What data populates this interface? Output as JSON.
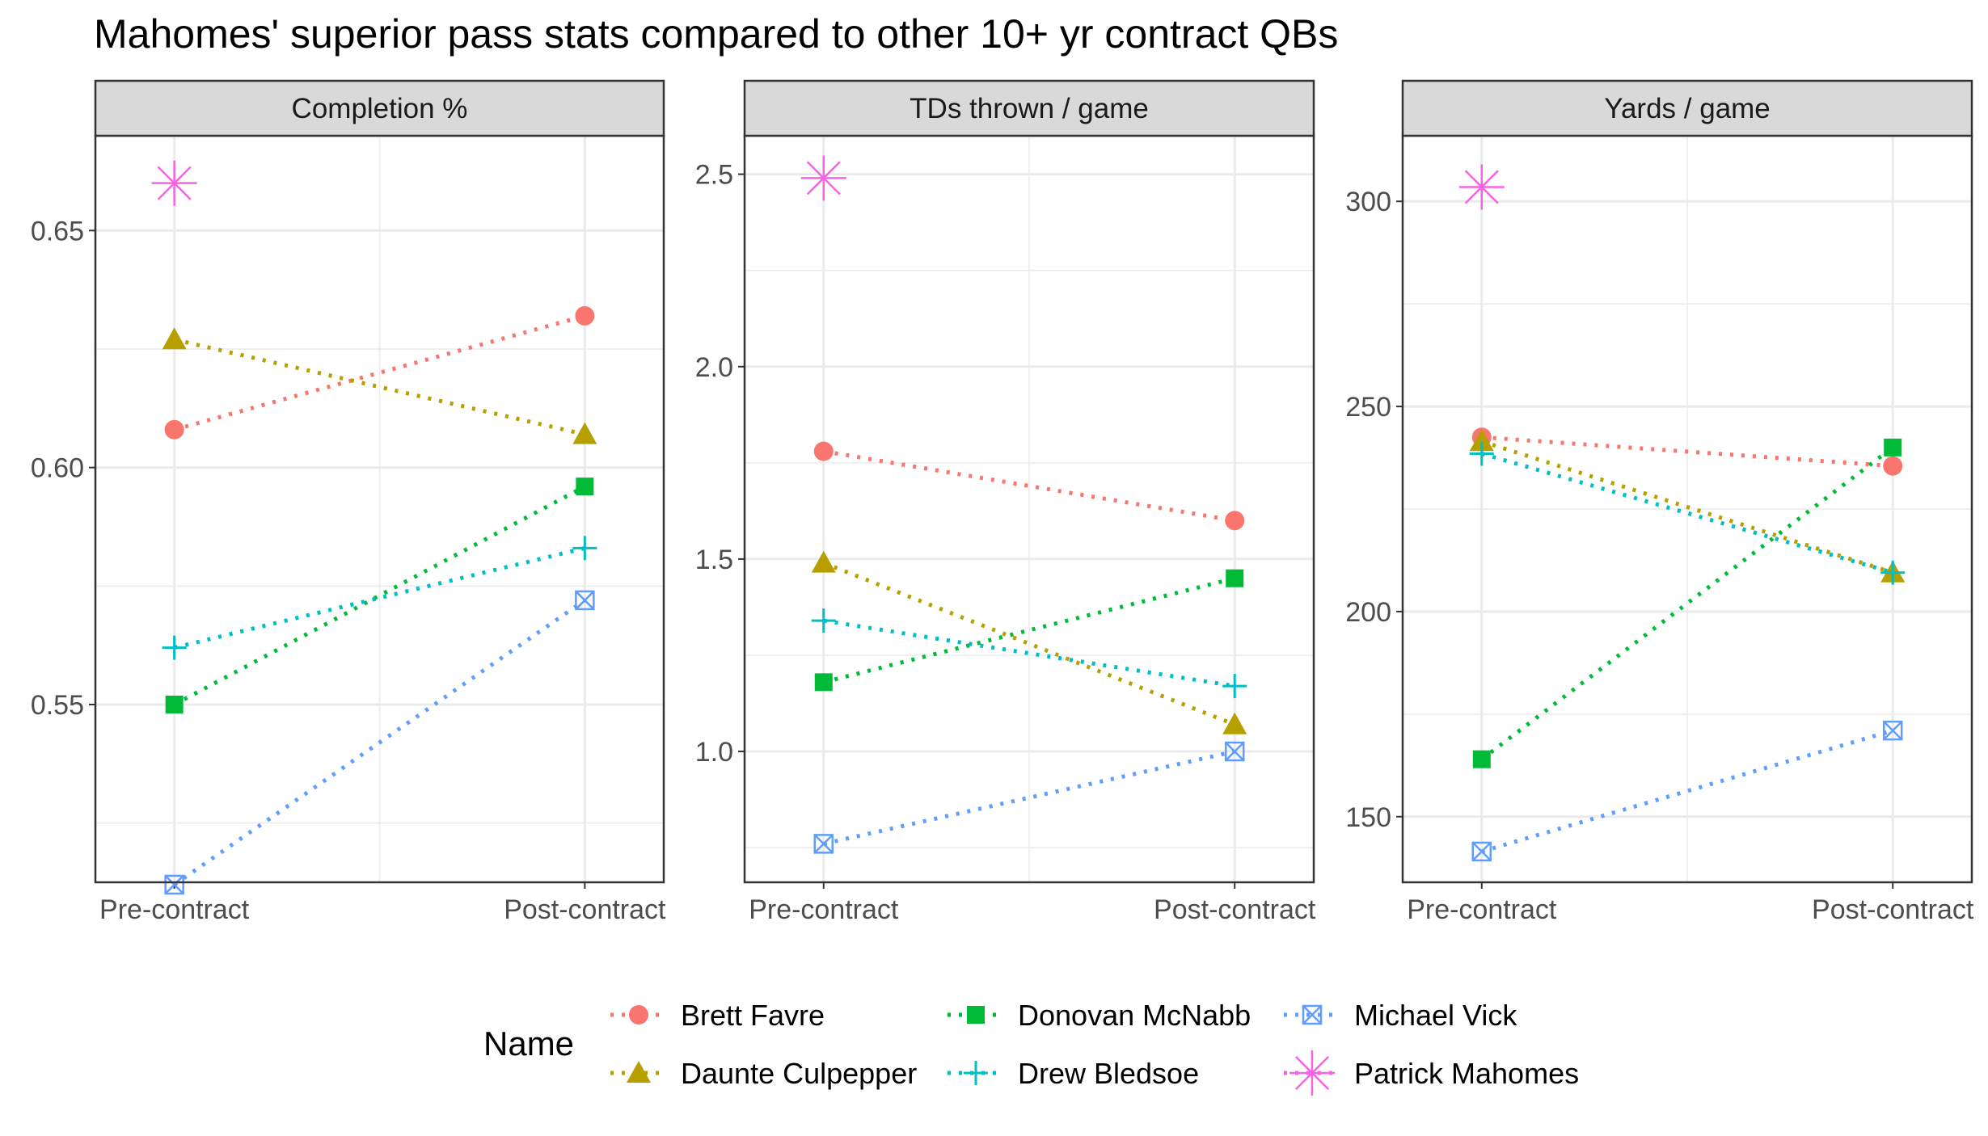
{
  "chart_data": {
    "type": "line",
    "title": "Mahomes' superior pass stats compared to other 10+ yr contract QBs",
    "x_categories": [
      "Pre-contract",
      "Post-contract"
    ],
    "grid": true,
    "legend": {
      "title": "Name",
      "placement": "bottom"
    },
    "series": [
      {
        "name": "Brett Favre",
        "color": "#F8766D",
        "marker": "circle"
      },
      {
        "name": "Daunte Culpepper",
        "color": "#B79F00",
        "marker": "triangle"
      },
      {
        "name": "Donovan McNabb",
        "color": "#00BA38",
        "marker": "square"
      },
      {
        "name": "Drew Bledsoe",
        "color": "#00BFC4",
        "marker": "plus"
      },
      {
        "name": "Michael Vick",
        "color": "#619CFF",
        "marker": "square-cross"
      },
      {
        "name": "Patrick Mahomes",
        "color": "#F564E3",
        "marker": "asterisk"
      }
    ],
    "panels": [
      {
        "title": "Completion %",
        "ylim": [
          0.5125,
          0.67
        ],
        "yticks": [
          0.55,
          0.6,
          0.65
        ],
        "ytick_labels": [
          "0.55",
          "0.60",
          "0.65"
        ],
        "values": {
          "Brett Favre": [
            0.608,
            0.632
          ],
          "Daunte Culpepper": [
            0.627,
            0.607
          ],
          "Donovan McNabb": [
            0.55,
            0.596
          ],
          "Drew Bledsoe": [
            0.562,
            0.583
          ],
          "Michael Vick": [
            0.512,
            0.572
          ],
          "Patrick Mahomes": [
            0.66,
            null
          ]
        }
      },
      {
        "title": "TDs thrown / game",
        "ylim": [
          0.66,
          2.6
        ],
        "yticks": [
          1.0,
          1.5,
          2.0,
          2.5
        ],
        "ytick_labels": [
          "1.0",
          "1.5",
          "2.0",
          "2.5"
        ],
        "values": {
          "Brett Favre": [
            1.78,
            1.6
          ],
          "Daunte Culpepper": [
            1.49,
            1.07
          ],
          "Donovan McNabb": [
            1.18,
            1.45
          ],
          "Drew Bledsoe": [
            1.34,
            1.17
          ],
          "Michael Vick": [
            0.76,
            1.0
          ],
          "Patrick Mahomes": [
            2.49,
            null
          ]
        }
      },
      {
        "title": "Yards / game",
        "ylim": [
          134,
          316
        ],
        "yticks": [
          150,
          200,
          250,
          300
        ],
        "ytick_labels": [
          "150",
          "200",
          "250",
          "300"
        ],
        "values": {
          "Brett Favre": [
            242.5,
            235.5
          ],
          "Daunte Culpepper": [
            241.5,
            209.5
          ],
          "Donovan McNabb": [
            164,
            240
          ],
          "Drew Bledsoe": [
            238.5,
            209.5
          ],
          "Michael Vick": [
            141.5,
            171
          ],
          "Patrick Mahomes": [
            303.5,
            null
          ]
        }
      }
    ]
  }
}
